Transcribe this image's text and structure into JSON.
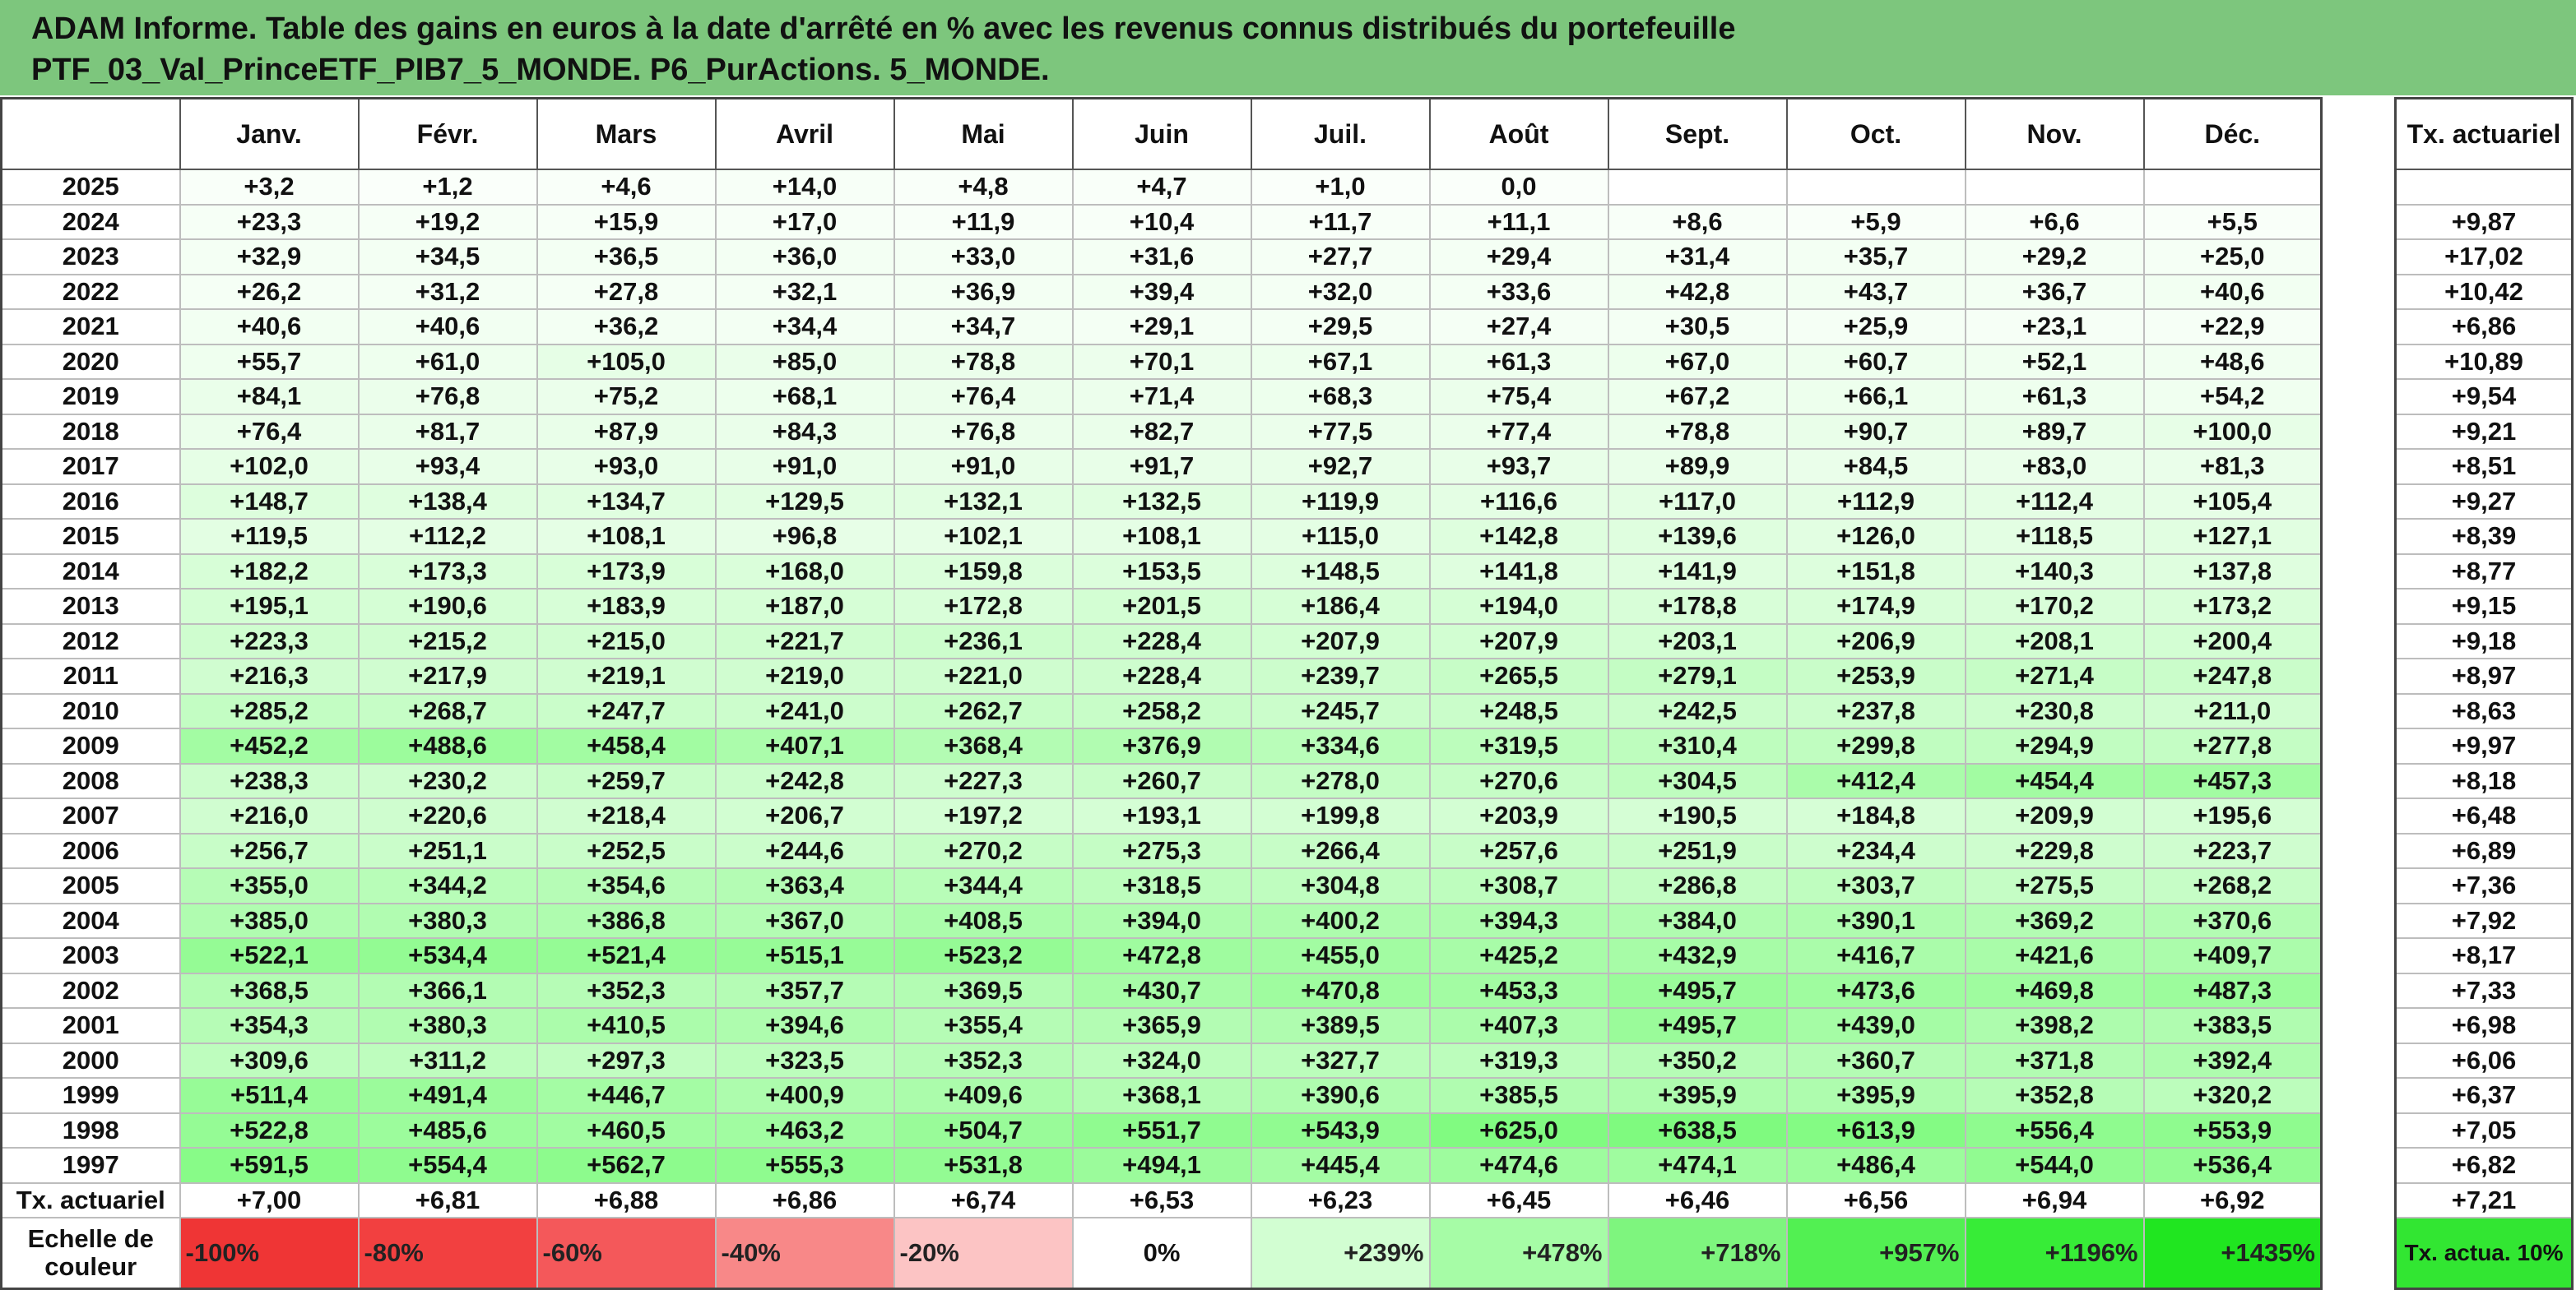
{
  "title": {
    "line1": "ADAM Informe. Table des gains en euros à la date d'arrêté en % avec les revenus connus distribués du portefeuille",
    "line2": "PTF_03_Val_PrinceETF_PIB7_5_MONDE. P6_PurActions. 5_MONDE."
  },
  "months": [
    "Janv.",
    "Févr.",
    "Mars",
    "Avril",
    "Mai",
    "Juin",
    "Juil.",
    "Août",
    "Sept.",
    "Oct.",
    "Nov.",
    "Déc."
  ],
  "right_header": "Tx. actuariel",
  "rows": [
    {
      "year": "2025",
      "values": [
        "+3,2",
        "+1,2",
        "+4,6",
        "+14,0",
        "+4,8",
        "+4,7",
        "+1,0",
        "0,0",
        "",
        "",
        "",
        ""
      ],
      "actu": ""
    },
    {
      "year": "2024",
      "values": [
        "+23,3",
        "+19,2",
        "+15,9",
        "+17,0",
        "+11,9",
        "+10,4",
        "+11,7",
        "+11,1",
        "+8,6",
        "+5,9",
        "+6,6",
        "+5,5"
      ],
      "actu": "+9,87"
    },
    {
      "year": "2023",
      "values": [
        "+32,9",
        "+34,5",
        "+36,5",
        "+36,0",
        "+33,0",
        "+31,6",
        "+27,7",
        "+29,4",
        "+31,4",
        "+35,7",
        "+29,2",
        "+25,0"
      ],
      "actu": "+17,02"
    },
    {
      "year": "2022",
      "values": [
        "+26,2",
        "+31,2",
        "+27,8",
        "+32,1",
        "+36,9",
        "+39,4",
        "+32,0",
        "+33,6",
        "+42,8",
        "+43,7",
        "+36,7",
        "+40,6"
      ],
      "actu": "+10,42"
    },
    {
      "year": "2021",
      "values": [
        "+40,6",
        "+40,6",
        "+36,2",
        "+34,4",
        "+34,7",
        "+29,1",
        "+29,5",
        "+27,4",
        "+30,5",
        "+25,9",
        "+23,1",
        "+22,9"
      ],
      "actu": "+6,86"
    },
    {
      "year": "2020",
      "values": [
        "+55,7",
        "+61,0",
        "+105,0",
        "+85,0",
        "+78,8",
        "+70,1",
        "+67,1",
        "+61,3",
        "+67,0",
        "+60,7",
        "+52,1",
        "+48,6"
      ],
      "actu": "+10,89"
    },
    {
      "year": "2019",
      "values": [
        "+84,1",
        "+76,8",
        "+75,2",
        "+68,1",
        "+76,4",
        "+71,4",
        "+68,3",
        "+75,4",
        "+67,2",
        "+66,1",
        "+61,3",
        "+54,2"
      ],
      "actu": "+9,54"
    },
    {
      "year": "2018",
      "values": [
        "+76,4",
        "+81,7",
        "+87,9",
        "+84,3",
        "+76,8",
        "+82,7",
        "+77,5",
        "+77,4",
        "+78,8",
        "+90,7",
        "+89,7",
        "+100,0"
      ],
      "actu": "+9,21"
    },
    {
      "year": "2017",
      "values": [
        "+102,0",
        "+93,4",
        "+93,0",
        "+91,0",
        "+91,0",
        "+91,7",
        "+92,7",
        "+93,7",
        "+89,9",
        "+84,5",
        "+83,0",
        "+81,3"
      ],
      "actu": "+8,51"
    },
    {
      "year": "2016",
      "values": [
        "+148,7",
        "+138,4",
        "+134,7",
        "+129,5",
        "+132,1",
        "+132,5",
        "+119,9",
        "+116,6",
        "+117,0",
        "+112,9",
        "+112,4",
        "+105,4"
      ],
      "actu": "+9,27"
    },
    {
      "year": "2015",
      "values": [
        "+119,5",
        "+112,2",
        "+108,1",
        "+96,8",
        "+102,1",
        "+108,1",
        "+115,0",
        "+142,8",
        "+139,6",
        "+126,0",
        "+118,5",
        "+127,1"
      ],
      "actu": "+8,39"
    },
    {
      "year": "2014",
      "values": [
        "+182,2",
        "+173,3",
        "+173,9",
        "+168,0",
        "+159,8",
        "+153,5",
        "+148,5",
        "+141,8",
        "+141,9",
        "+151,8",
        "+140,3",
        "+137,8"
      ],
      "actu": "+8,77"
    },
    {
      "year": "2013",
      "values": [
        "+195,1",
        "+190,6",
        "+183,9",
        "+187,0",
        "+172,8",
        "+201,5",
        "+186,4",
        "+194,0",
        "+178,8",
        "+174,9",
        "+170,2",
        "+173,2"
      ],
      "actu": "+9,15"
    },
    {
      "year": "2012",
      "values": [
        "+223,3",
        "+215,2",
        "+215,0",
        "+221,7",
        "+236,1",
        "+228,4",
        "+207,9",
        "+207,9",
        "+203,1",
        "+206,9",
        "+208,1",
        "+200,4"
      ],
      "actu": "+9,18"
    },
    {
      "year": "2011",
      "values": [
        "+216,3",
        "+217,9",
        "+219,1",
        "+219,0",
        "+221,0",
        "+228,4",
        "+239,7",
        "+265,5",
        "+279,1",
        "+253,9",
        "+271,4",
        "+247,8"
      ],
      "actu": "+8,97"
    },
    {
      "year": "2010",
      "values": [
        "+285,2",
        "+268,7",
        "+247,7",
        "+241,0",
        "+262,7",
        "+258,2",
        "+245,7",
        "+248,5",
        "+242,5",
        "+237,8",
        "+230,8",
        "+211,0"
      ],
      "actu": "+8,63"
    },
    {
      "year": "2009",
      "values": [
        "+452,2",
        "+488,6",
        "+458,4",
        "+407,1",
        "+368,4",
        "+376,9",
        "+334,6",
        "+319,5",
        "+310,4",
        "+299,8",
        "+294,9",
        "+277,8"
      ],
      "actu": "+9,97"
    },
    {
      "year": "2008",
      "values": [
        "+238,3",
        "+230,2",
        "+259,7",
        "+242,8",
        "+227,3",
        "+260,7",
        "+278,0",
        "+270,6",
        "+304,5",
        "+412,4",
        "+454,4",
        "+457,3"
      ],
      "actu": "+8,18"
    },
    {
      "year": "2007",
      "values": [
        "+216,0",
        "+220,6",
        "+218,4",
        "+206,7",
        "+197,2",
        "+193,1",
        "+199,8",
        "+203,9",
        "+190,5",
        "+184,8",
        "+209,9",
        "+195,6"
      ],
      "actu": "+6,48"
    },
    {
      "year": "2006",
      "values": [
        "+256,7",
        "+251,1",
        "+252,5",
        "+244,6",
        "+270,2",
        "+275,3",
        "+266,4",
        "+257,6",
        "+251,9",
        "+234,4",
        "+229,8",
        "+223,7"
      ],
      "actu": "+6,89"
    },
    {
      "year": "2005",
      "values": [
        "+355,0",
        "+344,2",
        "+354,6",
        "+363,4",
        "+344,4",
        "+318,5",
        "+304,8",
        "+308,7",
        "+286,8",
        "+303,7",
        "+275,5",
        "+268,2"
      ],
      "actu": "+7,36"
    },
    {
      "year": "2004",
      "values": [
        "+385,0",
        "+380,3",
        "+386,8",
        "+367,0",
        "+408,5",
        "+394,0",
        "+400,2",
        "+394,3",
        "+384,0",
        "+390,1",
        "+369,2",
        "+370,6"
      ],
      "actu": "+7,92"
    },
    {
      "year": "2003",
      "values": [
        "+522,1",
        "+534,4",
        "+521,4",
        "+515,1",
        "+523,2",
        "+472,8",
        "+455,0",
        "+425,2",
        "+432,9",
        "+416,7",
        "+421,6",
        "+409,7"
      ],
      "actu": "+8,17"
    },
    {
      "year": "2002",
      "values": [
        "+368,5",
        "+366,1",
        "+352,3",
        "+357,7",
        "+369,5",
        "+430,7",
        "+470,8",
        "+453,3",
        "+495,7",
        "+473,6",
        "+469,8",
        "+487,3"
      ],
      "actu": "+7,33"
    },
    {
      "year": "2001",
      "values": [
        "+354,3",
        "+380,3",
        "+410,5",
        "+394,6",
        "+355,4",
        "+365,9",
        "+389,5",
        "+407,3",
        "+495,7",
        "+439,0",
        "+398,2",
        "+383,5"
      ],
      "actu": "+6,98"
    },
    {
      "year": "2000",
      "values": [
        "+309,6",
        "+311,2",
        "+297,3",
        "+323,5",
        "+352,3",
        "+324,0",
        "+327,7",
        "+319,3",
        "+350,2",
        "+360,7",
        "+371,8",
        "+392,4"
      ],
      "actu": "+6,06"
    },
    {
      "year": "1999",
      "values": [
        "+511,4",
        "+491,4",
        "+446,7",
        "+400,9",
        "+409,6",
        "+368,1",
        "+390,6",
        "+385,5",
        "+395,9",
        "+395,9",
        "+352,8",
        "+320,2"
      ],
      "actu": "+6,37"
    },
    {
      "year": "1998",
      "values": [
        "+522,8",
        "+485,6",
        "+460,5",
        "+463,2",
        "+504,7",
        "+551,7",
        "+543,9",
        "+625,0",
        "+638,5",
        "+613,9",
        "+556,4",
        "+553,9"
      ],
      "actu": "+7,05"
    },
    {
      "year": "1997",
      "values": [
        "+591,5",
        "+554,4",
        "+562,7",
        "+555,3",
        "+531,8",
        "+494,1",
        "+445,4",
        "+474,6",
        "+474,1",
        "+486,4",
        "+544,0",
        "+536,4"
      ],
      "actu": "+6,82"
    }
  ],
  "actu_row": {
    "label": "Tx. actuariel",
    "values": [
      "+7,00",
      "+6,81",
      "+6,88",
      "+6,86",
      "+6,74",
      "+6,53",
      "+6,23",
      "+6,45",
      "+6,46",
      "+6,56",
      "+6,94",
      "+6,92"
    ],
    "total": "+7,21"
  },
  "scale": {
    "label": "Echelle de couleur",
    "cells": [
      {
        "text": "-100%",
        "color": "#ef3535"
      },
      {
        "text": "-80%",
        "color": "#f24040"
      },
      {
        "text": "-60%",
        "color": "#f4585a"
      },
      {
        "text": "-40%",
        "color": "#f88888"
      },
      {
        "text": "-20%",
        "color": "#fcc4c4"
      },
      {
        "text": "0%",
        "color": "#ffffff"
      },
      {
        "text": "+239%",
        "color": "#d2fed2"
      },
      {
        "text": "+478%",
        "color": "#a6fca6"
      },
      {
        "text": "+718%",
        "color": "#7ef57e"
      },
      {
        "text": "+957%",
        "color": "#52f052"
      },
      {
        "text": "+1196%",
        "color": "#37ec37"
      },
      {
        "text": "+1435%",
        "color": "#20e620"
      }
    ],
    "right": "Tx. actua. 10%",
    "right_color": "#32e632"
  }
}
